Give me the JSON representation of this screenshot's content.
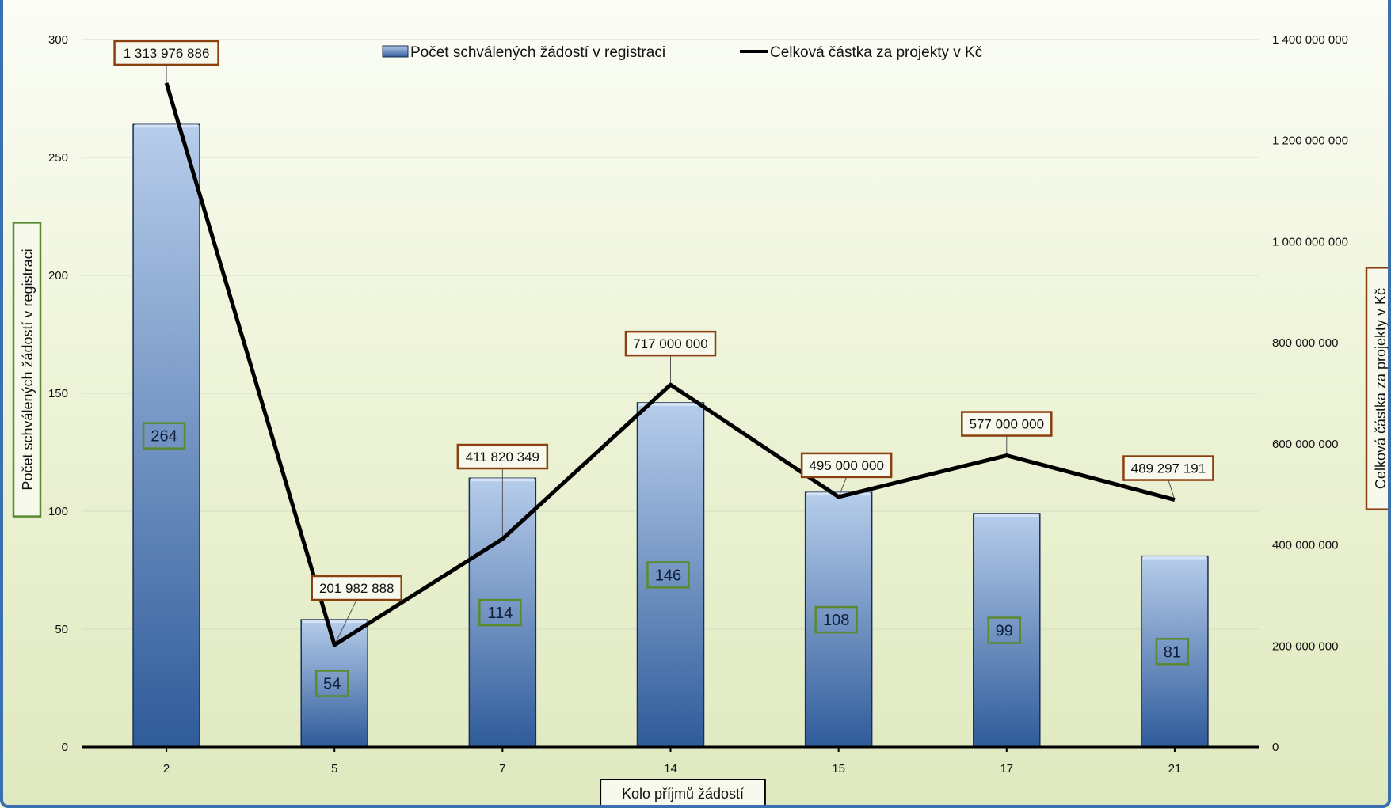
{
  "chart_data": {
    "type": "bar",
    "title": "",
    "categories": [
      "2",
      "5",
      "7",
      "14",
      "15",
      "17",
      "21"
    ],
    "series": [
      {
        "name": "Počet schválených žádostí v registraci",
        "kind": "bar",
        "axis": "left",
        "values": [
          264,
          54,
          114,
          146,
          108,
          99,
          81
        ],
        "data_labels": [
          "264",
          "54",
          "114",
          "146",
          "108",
          "99",
          "81"
        ]
      },
      {
        "name": "Celková částka za projekty v Kč",
        "kind": "line",
        "axis": "right",
        "values": [
          1313976886,
          201982888,
          411820349,
          717000000,
          495000000,
          577000000,
          489297191
        ],
        "data_labels": [
          "1 313 976 886",
          "201 982 888",
          "411 820 349",
          "717 000 000",
          "495 000 000",
          "577 000 000",
          "489 297 191"
        ]
      }
    ],
    "xlabel": "Kolo příjmů žádostí",
    "ylabel": "Počet schválených žádostí v registraci",
    "y2label": "Celková částka za projekty v Kč",
    "ylim": [
      0,
      300
    ],
    "y2lim": [
      0,
      1400000000
    ],
    "y_ticks": [
      "0",
      "50",
      "100",
      "150",
      "200",
      "250",
      "300"
    ],
    "y2_ticks": [
      "0",
      "200 000 000",
      "400 000 000",
      "600 000 000",
      "800 000 000",
      "1 000 000 000",
      "1 200 000 000",
      "1 400 000 000"
    ],
    "grid": true,
    "legend_position": "top",
    "colors": {
      "bar_top": "#b7cdeb",
      "bar_bottom": "#2f5b9a",
      "bar_edge": "#1b2f52",
      "line": "#000000",
      "bar_label_border": "#5b8a2e",
      "line_label_border": "#8b3f0d",
      "axis_title_left_border": "#5b8a2e",
      "axis_title_right_border": "#8b3f0d",
      "frame": "#3a6fb0"
    }
  }
}
